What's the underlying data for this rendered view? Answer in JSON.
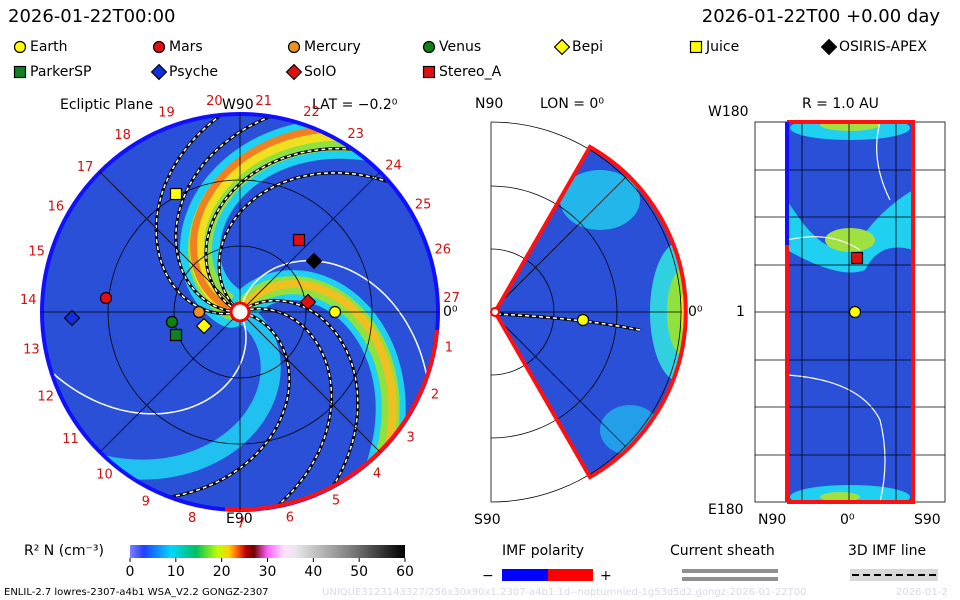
{
  "header": {
    "time_left": "2026-01-22T00:00",
    "time_right": "2026-01-22T00 +0.00 day"
  },
  "legend": [
    {
      "name": "Earth",
      "color": "#ffff00",
      "marker": "circle"
    },
    {
      "name": "Mars",
      "color": "#e01010",
      "marker": "circle"
    },
    {
      "name": "Mercury",
      "color": "#f09020",
      "marker": "circle"
    },
    {
      "name": "Venus",
      "color": "#108010",
      "marker": "circle"
    },
    {
      "name": "Bepi",
      "color": "#ffff00",
      "marker": "diamond"
    },
    {
      "name": "Juice",
      "color": "#ffff00",
      "marker": "square"
    },
    {
      "name": "OSIRIS-APEX",
      "color": "#000000",
      "marker": "diamond"
    },
    {
      "name": "ParkerSP",
      "color": "#108020",
      "marker": "square"
    },
    {
      "name": "Psyche",
      "color": "#1030e0",
      "marker": "diamond"
    },
    {
      "name": "SolO",
      "color": "#e01010",
      "marker": "diamond"
    },
    {
      "name": "Stereo_A",
      "color": "#e01010",
      "marker": "square"
    }
  ],
  "ecliptic_panel": {
    "title": "Ecliptic Plane",
    "top_label": "W90",
    "lat_label": "LAT = −0.2⁰",
    "bottom_label": "E90",
    "right_label": "0⁰",
    "longitude_labels": [
      1,
      2,
      3,
      4,
      5,
      6,
      7,
      8,
      9,
      10,
      11,
      12,
      13,
      14,
      15,
      16,
      17,
      18,
      19,
      20,
      21,
      22,
      23,
      24,
      25,
      26,
      27
    ]
  },
  "meridional_panel": {
    "top_label": "N90",
    "lon_label": "LON = 0⁰",
    "bottom_label": "S90",
    "right_label": "0⁰"
  },
  "radius_panel": {
    "top_left_label": "W180",
    "title": "R = 1.0 AU",
    "bottom_left_label": "E180",
    "mid_label": "1",
    "x_labels": [
      "N90",
      "0⁰",
      "S90"
    ]
  },
  "colorbar": {
    "label": "R² N (cm⁻³)",
    "ticks": [
      0,
      10,
      20,
      30,
      40,
      50,
      60
    ]
  },
  "imf_polarity": {
    "title": "IMF polarity",
    "minus": "−",
    "plus": "+"
  },
  "current_sheath": {
    "title": "Current sheath"
  },
  "imf_line": {
    "title": "3D IMF line"
  },
  "footer": {
    "model": "ENLIL-2.7 lowres-2307-a4b1 WSA_V2.2 GONGZ-2307",
    "run_id": "UNIQUE3123143327/256x30x90x1.2307-a4b1.1d--noptumnled-1g53d5d2.gongz-2026-01-22T00",
    "date": "2026-01-2"
  }
}
